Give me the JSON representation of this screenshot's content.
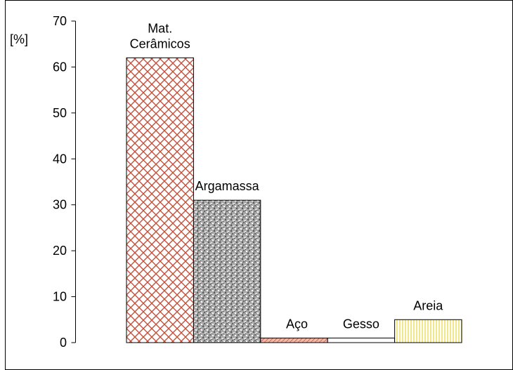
{
  "chart_data": {
    "type": "bar",
    "categories": [
      "Mat.\nCerâmicos",
      "Argamassa",
      "Aço",
      "Gesso",
      "Areia"
    ],
    "values": [
      62,
      31,
      1,
      1,
      5
    ],
    "ylabel": "[%]",
    "ylim": [
      0,
      70
    ],
    "yticks": [
      0,
      10,
      20,
      30,
      40,
      50,
      60,
      70
    ],
    "grid": false,
    "legend": "none",
    "colors": {
      "ceramic_pattern": "#c0503a",
      "mortar_pattern": "#8a8a8a",
      "steel_pattern": "#d06b52",
      "gypsum_fill": "#ffffff",
      "sand_pattern": "#f2e88a"
    }
  }
}
